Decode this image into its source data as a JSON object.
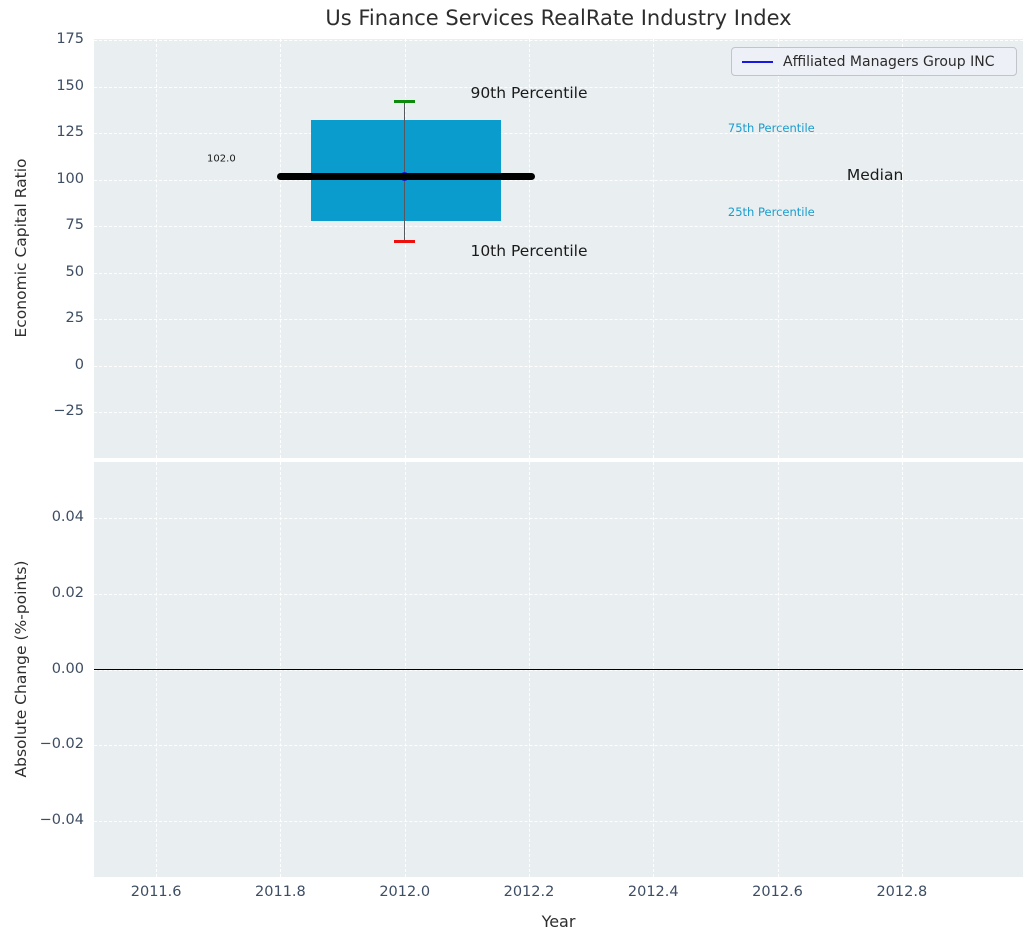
{
  "title": "Us Finance Services RealRate Industry Index",
  "legend": {
    "label": "Affiliated Managers Group INC",
    "line_color": "#1717e6"
  },
  "colors": {
    "plot_background": "#e9eef0",
    "gridline": "#ffffff",
    "tick_label": "#3d4d63",
    "box_fill": "#0a9ccd",
    "p90_cap": "#0b8a0b",
    "p10_cap": "#ed0e0e",
    "median_line": "#000000",
    "company_marker": "#1717e6",
    "whisker": "#55595f",
    "percentile_text": "#1c9cce",
    "zero_line": "#000000"
  },
  "chart_data": [
    {
      "type": "box",
      "title": "Us Finance Services RealRate Industry Index",
      "ylabel": "Economic Capital Ratio",
      "xlim": [
        2011.5,
        2012.995
      ],
      "ylim": [
        -49.7,
        175.8
      ],
      "yticks": [
        175,
        150,
        125,
        100,
        75,
        50,
        25,
        0,
        -25
      ],
      "yticklabels": [
        "175",
        "150",
        "125",
        "100",
        "75",
        "50",
        "25",
        "0",
        "−25"
      ],
      "xticks": [
        2011.6,
        2011.8,
        2012.0,
        2012.2,
        2012.4,
        2012.6,
        2012.8
      ],
      "grid": true,
      "legend_position": "upper right",
      "box": {
        "x": 2012.0,
        "x_left": 2011.85,
        "x_right": 2012.155,
        "p10": 67,
        "p25": 78,
        "median": 102,
        "p75": 132,
        "p90": 142,
        "median_label": "102.0",
        "median_line_x": [
          2011.795,
          2012.21
        ],
        "cap_halfwidth": 0.0165
      },
      "series": [
        {
          "name": "Affiliated Managers Group INC",
          "x": [
            2012.0
          ],
          "y": [
            102.0
          ]
        }
      ],
      "annotations": [
        {
          "text": "90th Percentile",
          "x": 2012.2,
          "y": 146.5,
          "color": "#1a1a1a",
          "size": 15.5
        },
        {
          "text": "10th Percentile",
          "x": 2012.2,
          "y": 61.5,
          "color": "#1a1a1a",
          "size": 15.5
        },
        {
          "text": "102.0",
          "x": 2011.705,
          "y": 111.0,
          "color": "#1a1a1a",
          "size": 10
        },
        {
          "text": "75th Percentile",
          "x": 2012.59,
          "y": 128.0,
          "color": "#1c9cce",
          "size": 11.5
        },
        {
          "text": "25th Percentile",
          "x": 2012.59,
          "y": 82.5,
          "color": "#1c9cce",
          "size": 11.5
        },
        {
          "text": "Median",
          "x": 2012.757,
          "y": 102.4,
          "color": "#1a1a1a",
          "size": 15.5
        }
      ]
    },
    {
      "type": "line",
      "ylabel": "Absolute Change (%-points)",
      "xlabel": "Year",
      "xlim": [
        2011.5,
        2012.995
      ],
      "ylim": [
        -0.0549,
        0.0549
      ],
      "yticks": [
        0.04,
        0.02,
        0.0,
        -0.02,
        -0.04
      ],
      "yticklabels": [
        "0.04",
        "0.02",
        "0.00",
        "−0.02",
        "−0.04"
      ],
      "xticks": [
        2011.6,
        2011.8,
        2012.0,
        2012.2,
        2012.4,
        2012.6,
        2012.8
      ],
      "xticklabels": [
        "2011.6",
        "2011.8",
        "2012.0",
        "2012.2",
        "2012.4",
        "2012.6",
        "2012.8"
      ],
      "grid": true,
      "zero_line": 0.0,
      "series": []
    }
  ]
}
